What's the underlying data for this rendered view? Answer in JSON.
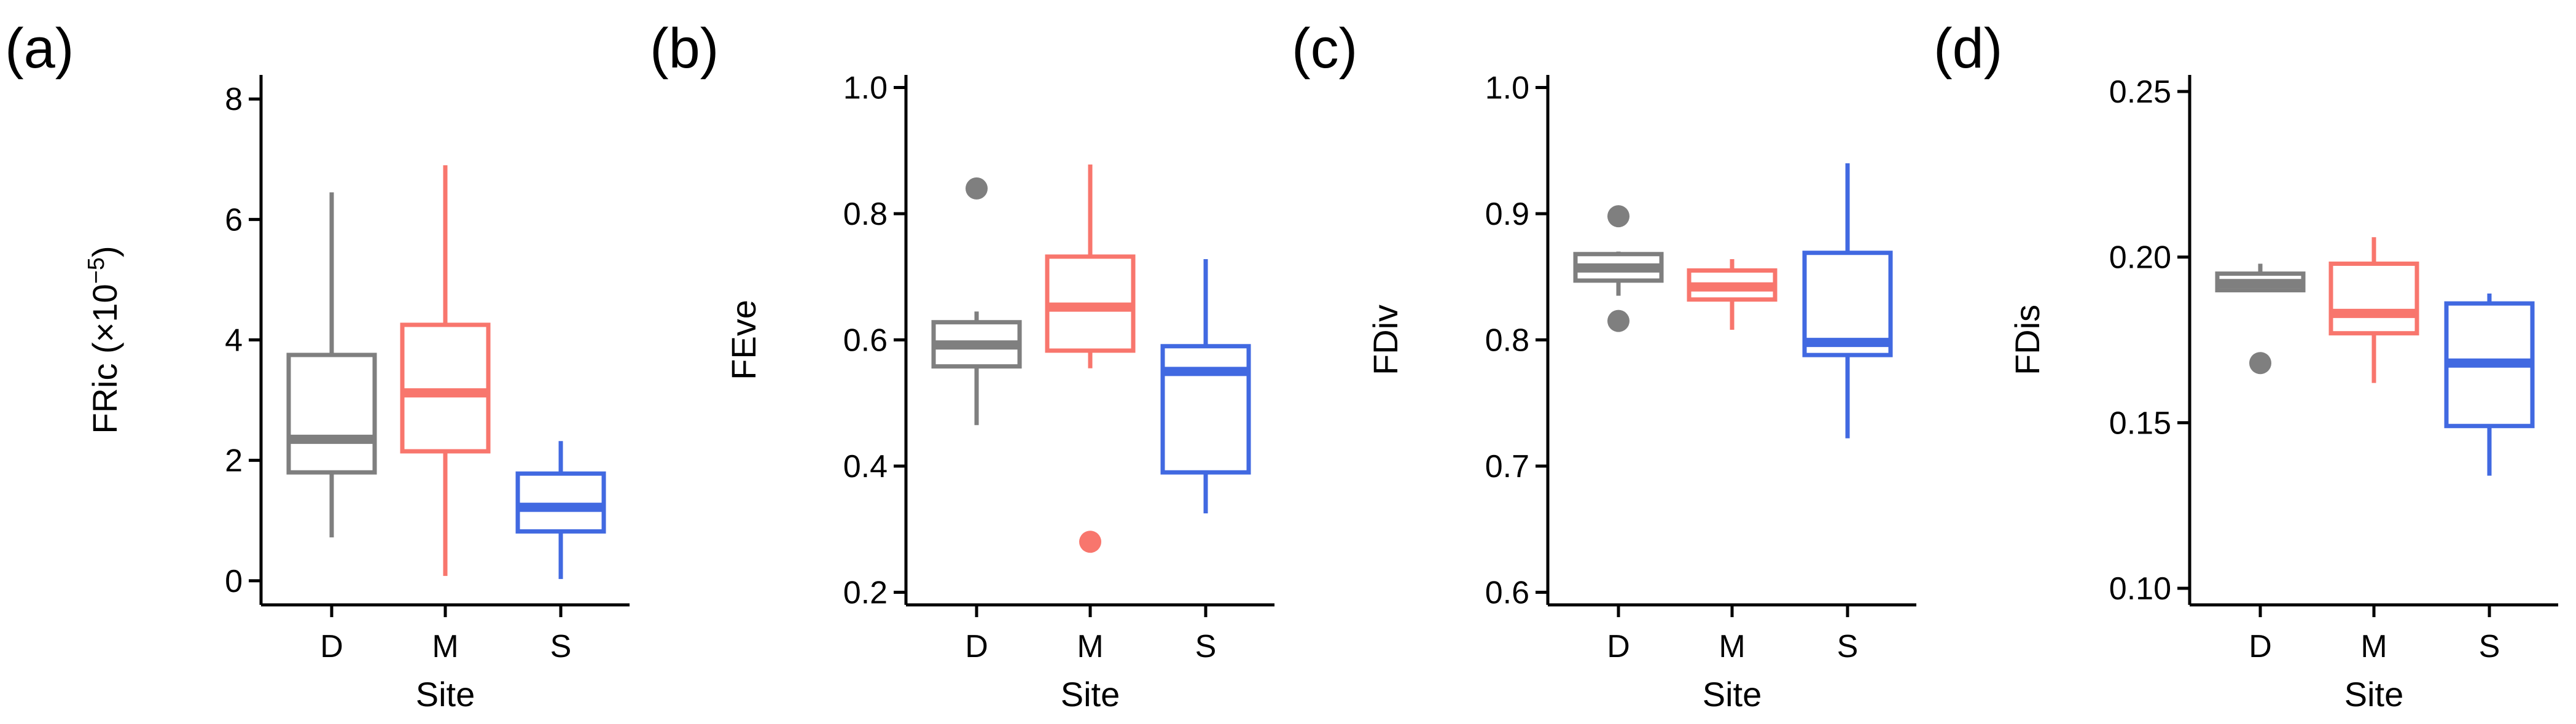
{
  "figure": {
    "x_label": "Site",
    "categories": [
      "D",
      "M",
      "S"
    ],
    "colors": {
      "D": "#7f7f7f",
      "M": "#f8766d",
      "S": "#4169e1"
    }
  },
  "chart_data": [
    {
      "type": "boxplot",
      "panel_label": "(a)",
      "title": "",
      "xlabel": "Site",
      "ylabel": "FRic (×10",
      "ylabel_superscript": "−5",
      "ylabel_suffix": ")",
      "ylim": [
        -0.4,
        8.4
      ],
      "yticks": [
        0,
        2,
        4,
        6,
        8
      ],
      "ytick_labels": [
        "0",
        "2",
        "4",
        "6",
        "8"
      ],
      "categories": [
        "D",
        "M",
        "S"
      ],
      "boxes": [
        {
          "site": "D",
          "whisker_low": 0.72,
          "q1": 1.8,
          "median": 2.35,
          "q3": 3.75,
          "whisker_high": 6.45,
          "outliers": []
        },
        {
          "site": "M",
          "whisker_low": 0.08,
          "q1": 2.15,
          "median": 3.12,
          "q3": 4.25,
          "whisker_high": 6.9,
          "outliers": []
        },
        {
          "site": "S",
          "whisker_low": 0.03,
          "q1": 0.82,
          "median": 1.22,
          "q3": 1.78,
          "whisker_high": 2.32,
          "outliers": []
        }
      ]
    },
    {
      "type": "boxplot",
      "panel_label": "(b)",
      "title": "",
      "xlabel": "Site",
      "ylabel": "FEve",
      "ylim": [
        0.18,
        1.02
      ],
      "yticks": [
        0.2,
        0.4,
        0.6,
        0.8,
        1.0
      ],
      "ytick_labels": [
        "0.2",
        "0.4",
        "0.6",
        "0.8",
        "1.0"
      ],
      "categories": [
        "D",
        "M",
        "S"
      ],
      "boxes": [
        {
          "site": "D",
          "whisker_low": 0.465,
          "q1": 0.558,
          "median": 0.592,
          "q3": 0.628,
          "whisker_high": 0.645,
          "outliers": [
            0.84
          ]
        },
        {
          "site": "M",
          "whisker_low": 0.555,
          "q1": 0.583,
          "median": 0.652,
          "q3": 0.732,
          "whisker_high": 0.878,
          "outliers": [
            0.28
          ]
        },
        {
          "site": "S",
          "whisker_low": 0.325,
          "q1": 0.39,
          "median": 0.55,
          "q3": 0.59,
          "whisker_high": 0.728,
          "outliers": []
        }
      ]
    },
    {
      "type": "boxplot",
      "panel_label": "(c)",
      "title": "",
      "xlabel": "Site",
      "ylabel": "FDiv",
      "ylim": [
        0.59,
        1.01
      ],
      "yticks": [
        0.6,
        0.7,
        0.8,
        0.9,
        1.0
      ],
      "ytick_labels": [
        "0.6",
        "0.7",
        "0.8",
        "0.9",
        "1.0"
      ],
      "categories": [
        "D",
        "M",
        "S"
      ],
      "boxes": [
        {
          "site": "D",
          "whisker_low": 0.835,
          "q1": 0.847,
          "median": 0.857,
          "q3": 0.868,
          "whisker_high": 0.87,
          "outliers": [
            0.898,
            0.815
          ]
        },
        {
          "site": "M",
          "whisker_low": 0.808,
          "q1": 0.832,
          "median": 0.842,
          "q3": 0.855,
          "whisker_high": 0.864,
          "outliers": []
        },
        {
          "site": "S",
          "whisker_low": 0.722,
          "q1": 0.788,
          "median": 0.798,
          "q3": 0.869,
          "whisker_high": 0.94,
          "outliers": []
        }
      ]
    },
    {
      "type": "boxplot",
      "panel_label": "(d)",
      "title": "",
      "xlabel": "Site",
      "ylabel": "FDis",
      "ylim": [
        0.095,
        0.255
      ],
      "yticks": [
        0.1,
        0.15,
        0.2,
        0.25
      ],
      "ytick_labels": [
        "0.10",
        "0.15",
        "0.20",
        "0.25"
      ],
      "categories": [
        "D",
        "M",
        "S"
      ],
      "boxes": [
        {
          "site": "D",
          "whisker_low": 0.19,
          "q1": 0.19,
          "median": 0.192,
          "q3": 0.195,
          "whisker_high": 0.198,
          "outliers": [
            0.168
          ]
        },
        {
          "site": "M",
          "whisker_low": 0.162,
          "q1": 0.177,
          "median": 0.183,
          "q3": 0.198,
          "whisker_high": 0.206,
          "outliers": []
        },
        {
          "site": "S",
          "whisker_low": 0.134,
          "q1": 0.149,
          "median": 0.168,
          "q3": 0.186,
          "whisker_high": 0.189,
          "outliers": []
        }
      ]
    }
  ]
}
